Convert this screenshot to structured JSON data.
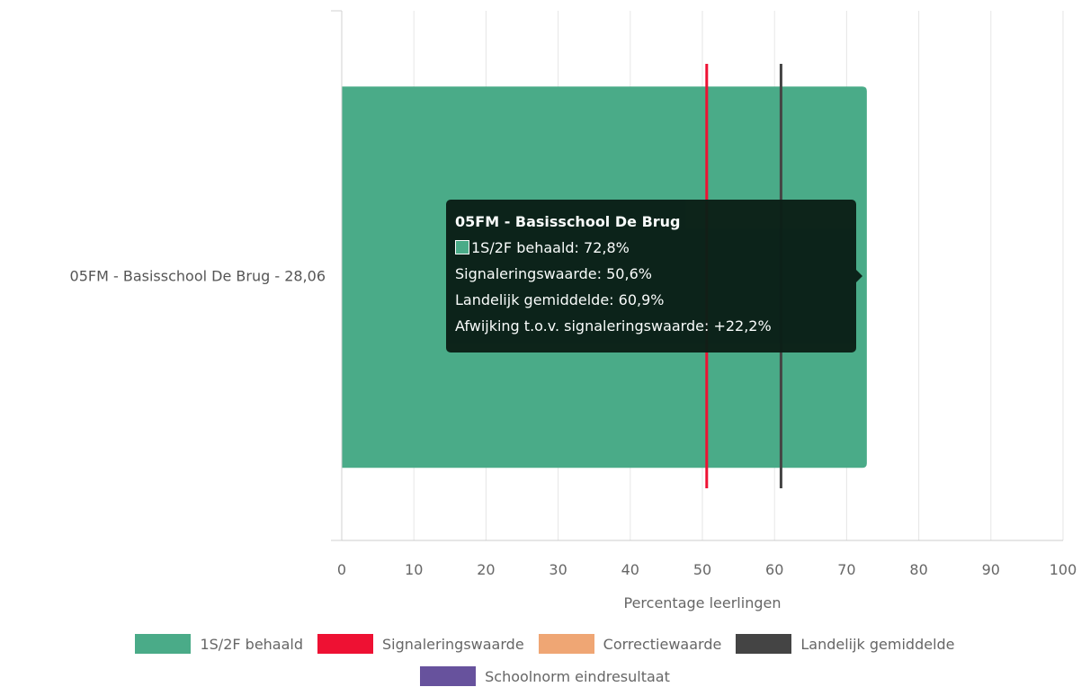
{
  "chart_data": {
    "type": "bar",
    "orientation": "horizontal",
    "categories": [
      "05FM - Basisschool De Brug - 28,06"
    ],
    "series": [
      {
        "name": "1S/2F behaald",
        "values": [
          72.8
        ],
        "color": "#4aab88"
      }
    ],
    "reference_lines": [
      {
        "name": "Signaleringswaarde",
        "value": 50.6,
        "color": "#ee1133"
      },
      {
        "name": "Landelijk gemiddelde",
        "value": 60.9,
        "color": "#444444"
      }
    ],
    "xlabel": "Percentage leerlingen",
    "ylabel": "",
    "xlim": [
      0,
      100
    ],
    "xticks": [
      0,
      10,
      20,
      30,
      40,
      50,
      60,
      70,
      80,
      90,
      100
    ],
    "xtick_labels": [
      "0",
      "10",
      "20",
      "30",
      "40",
      "50",
      "60",
      "70",
      "80",
      "90",
      "100"
    ],
    "grid": true,
    "legend_position": "bottom",
    "legend": [
      {
        "label": "1S/2F behaald",
        "color": "#4aab88"
      },
      {
        "label": "Signaleringswaarde",
        "color": "#ee1133"
      },
      {
        "label": "Correctiewaarde",
        "color": "#efa674"
      },
      {
        "label": "Landelijk gemiddelde",
        "color": "#444444"
      },
      {
        "label": "Schoolnorm eindresultaat",
        "color": "#67529d"
      }
    ]
  },
  "tooltip": {
    "title": "05FM - Basisschool De Brug",
    "line1": "1S/2F behaald: 72,8%",
    "line2": "Signaleringswaarde: 50,6%",
    "line3": "Landelijk gemiddelde: 60,9%",
    "line4": "Afwijking t.o.v. signaleringswaarde: +22,2%",
    "swatch_color": "#4aab88"
  }
}
